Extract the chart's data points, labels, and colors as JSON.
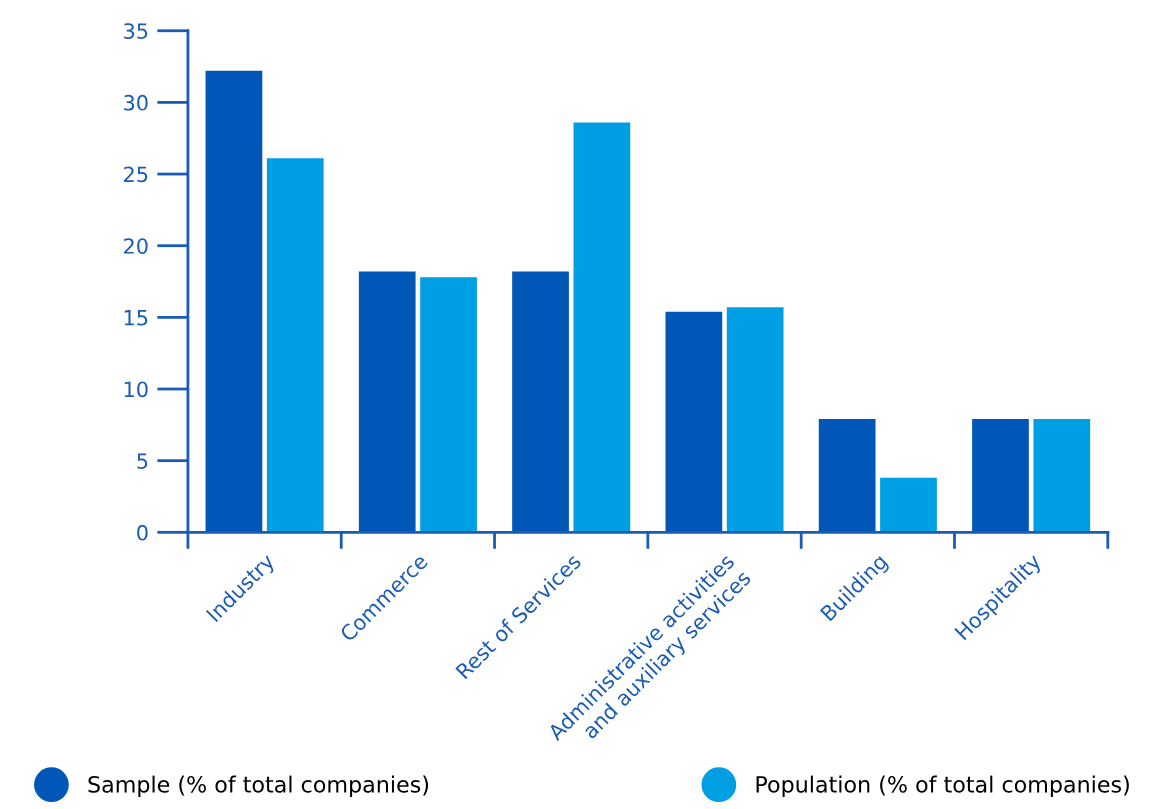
{
  "chart_data": {
    "type": "bar",
    "categories": [
      "Industry",
      "Commerce",
      "Rest of Services",
      "Administrative activities\nand auxiliary services",
      "Building",
      "Hospitality"
    ],
    "series": [
      {
        "name": "Sample (% of total companies)",
        "color": "#0057b8",
        "values": [
          32.2,
          18.2,
          18.2,
          15.4,
          7.9,
          7.9
        ]
      },
      {
        "name": "Population (% of total companies)",
        "color": "#009fe3",
        "values": [
          26.1,
          17.8,
          28.6,
          15.7,
          3.8,
          7.9
        ]
      }
    ],
    "ylim": [
      0,
      35
    ],
    "yticks": [
      0,
      5,
      10,
      15,
      20,
      25,
      30,
      35
    ],
    "grid": false,
    "legend": "bottom"
  }
}
